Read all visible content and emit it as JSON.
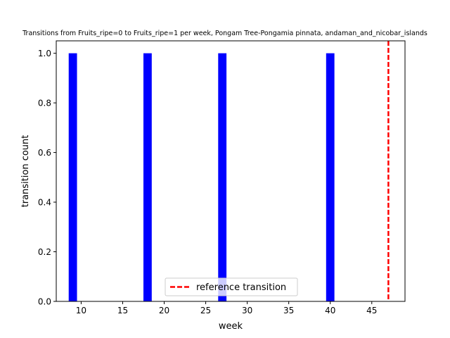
{
  "chart_data": {
    "type": "bar",
    "title": "Transitions from Fruits_ripe=0 to Fruits_ripe=1 per week, Pongam Tree-Pongamia pinnata, andaman_and_nicobar_islands",
    "xlabel": "week",
    "ylabel": "transition count",
    "xlim": [
      7.0,
      49.0
    ],
    "ylim": [
      0.0,
      1.05
    ],
    "xticks": [
      10,
      15,
      20,
      25,
      30,
      35,
      40,
      45
    ],
    "yticks": [
      0.0,
      0.2,
      0.4,
      0.6,
      0.8,
      1.0
    ],
    "bar_width_weeks": 1,
    "series": [
      {
        "x": [
          9,
          18,
          27,
          40
        ],
        "values": [
          1,
          1,
          1,
          1
        ],
        "color": "#0000ff"
      }
    ],
    "reference_line": {
      "name": "reference transition",
      "x": 47,
      "color": "#ff0000",
      "style": "dashed"
    },
    "legend": {
      "position": "lower center",
      "entries": [
        "reference transition"
      ]
    },
    "grid": false
  }
}
